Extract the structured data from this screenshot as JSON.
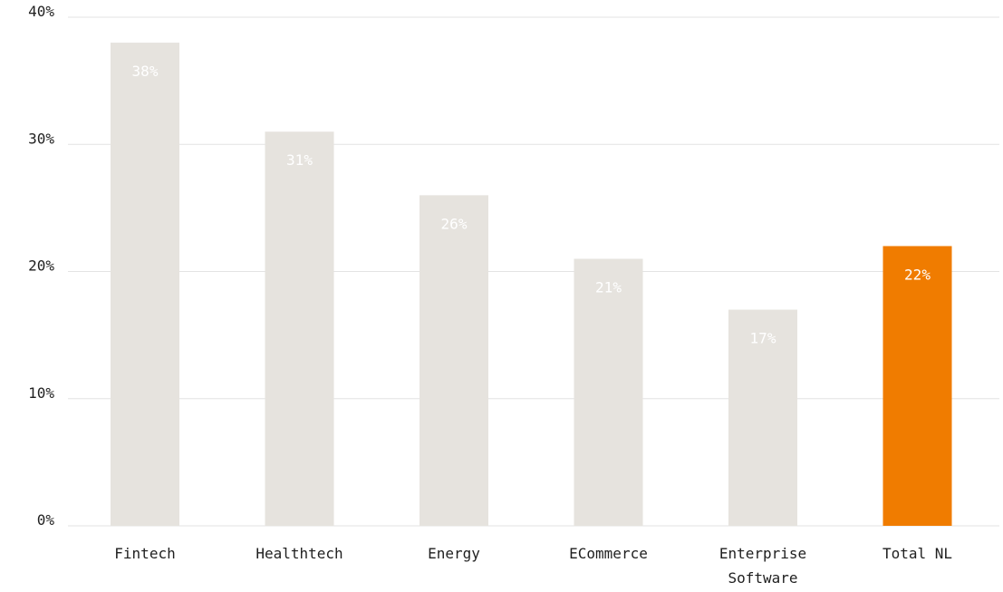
{
  "colors": {
    "bar_default": "#e6e3de",
    "bar_highlight": "#f07c00",
    "label_on_default": "#ffffff",
    "label_on_highlight": "#ffffff",
    "grid": "#e3e3e3",
    "text": "#1f1f1f"
  },
  "chart_data": {
    "type": "bar",
    "categories": [
      [
        "Fintech"
      ],
      [
        "Healthtech"
      ],
      [
        "Energy"
      ],
      [
        "ECommerce"
      ],
      [
        "Enterprise",
        "Software"
      ],
      [
        "Total NL"
      ]
    ],
    "values": [
      38,
      31,
      26,
      21,
      17,
      22
    ],
    "value_labels": [
      "38%",
      "31%",
      "26%",
      "21%",
      "17%",
      "22%"
    ],
    "highlight_index": 5,
    "yticks": [
      0,
      10,
      20,
      30,
      40
    ],
    "ytick_labels": [
      "0%",
      "10%",
      "20%",
      "30%",
      "40%"
    ],
    "ylim": [
      0,
      40
    ],
    "grid": true,
    "legend": false,
    "title": "",
    "xlabel": "",
    "ylabel": ""
  }
}
